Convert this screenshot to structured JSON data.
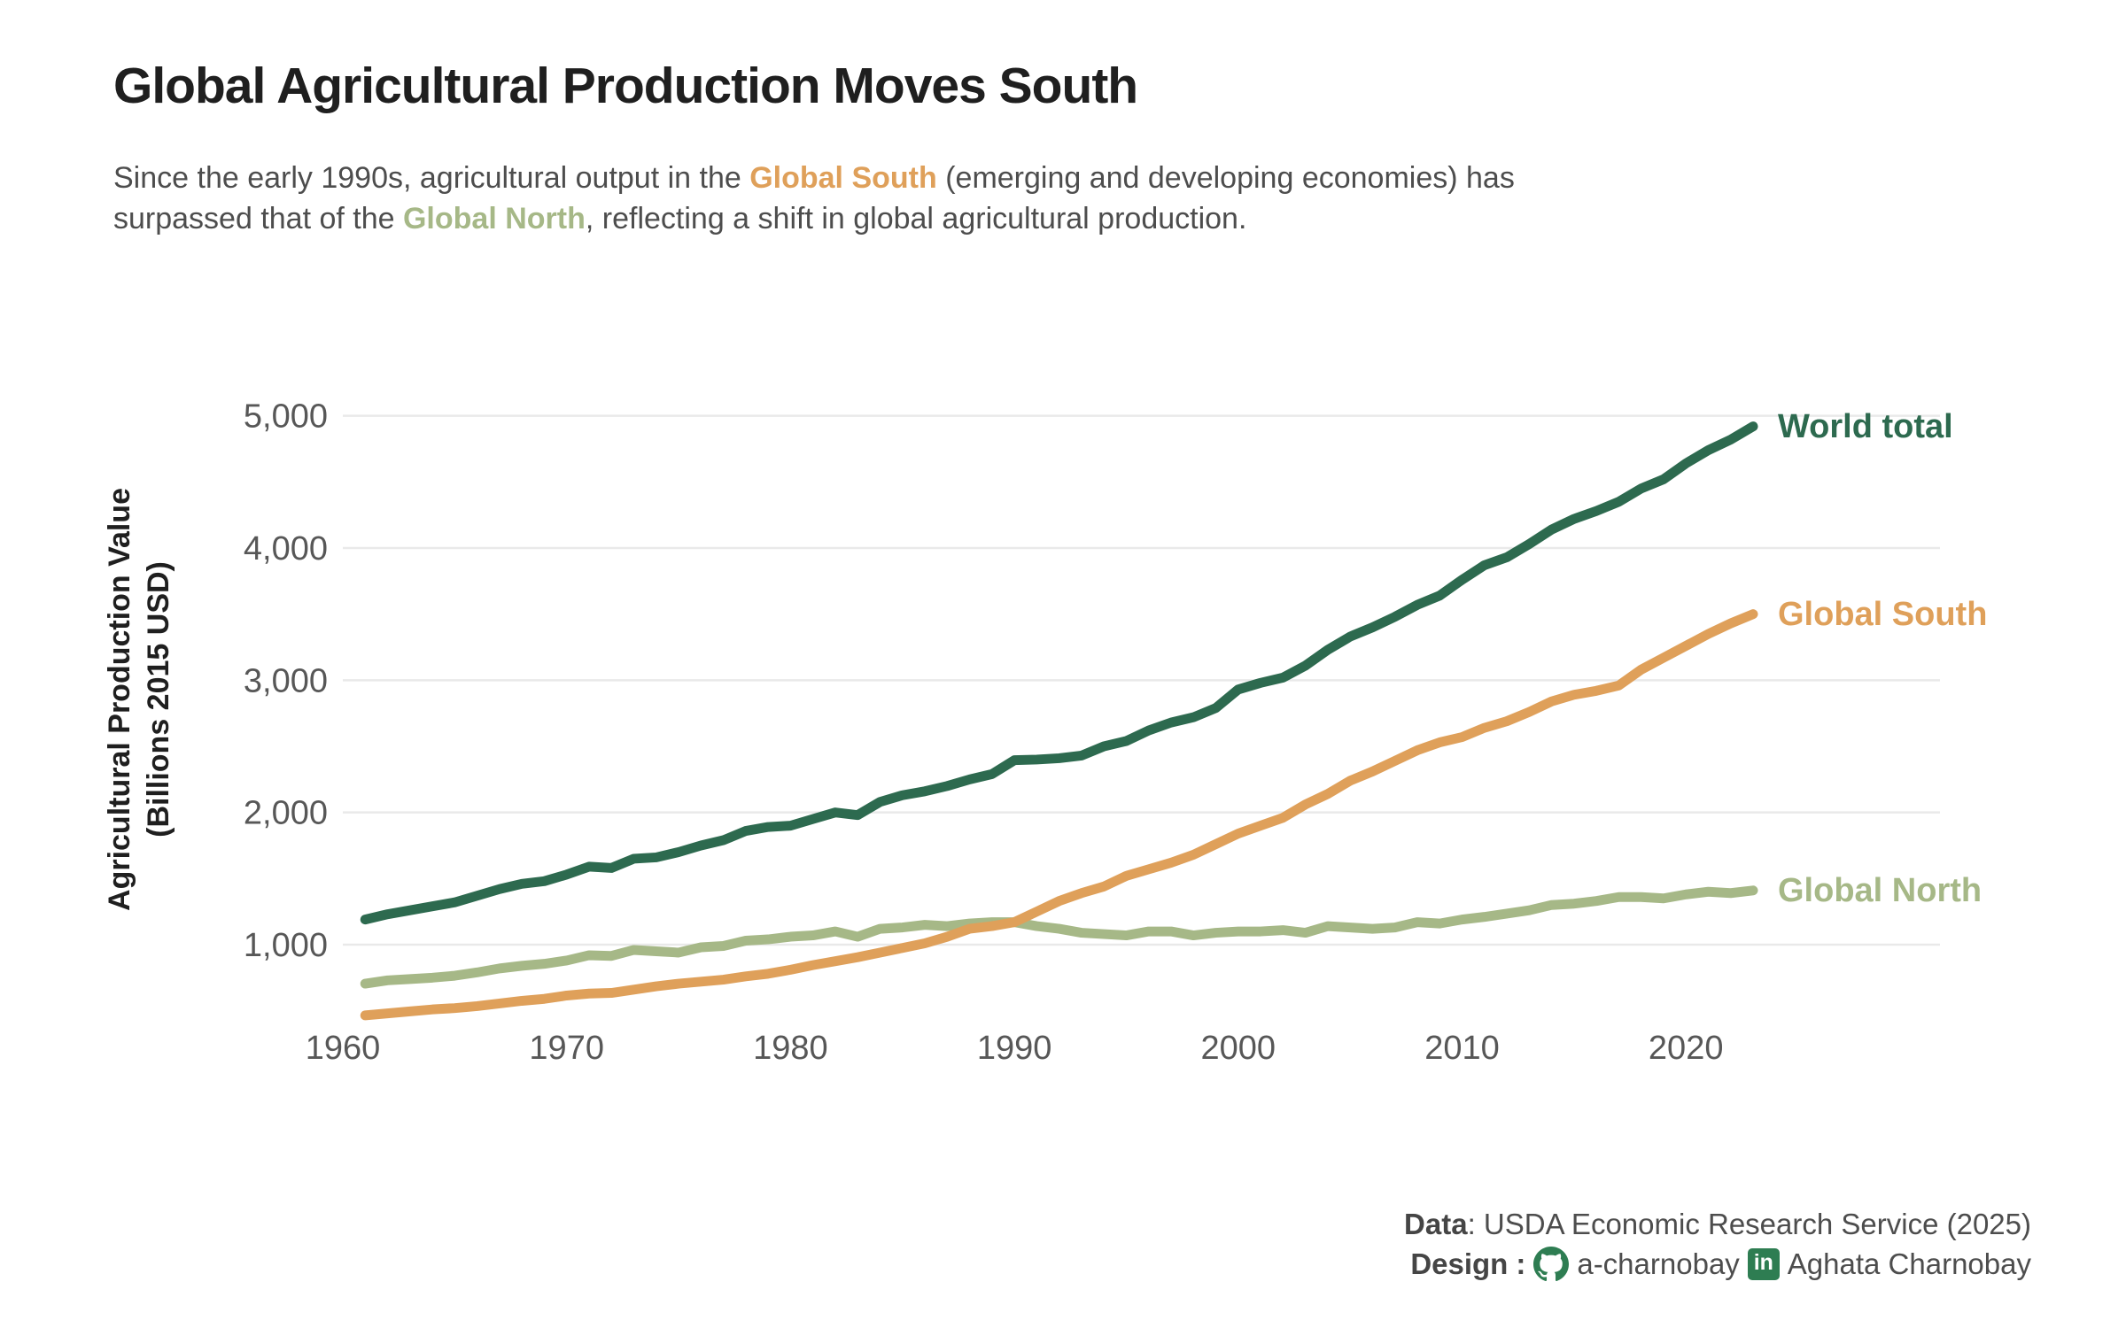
{
  "title": "Global Agricultural Production Moves South",
  "subtitle": {
    "lines": [
      [
        {
          "text": "Since the early 1990s, agricultural output in the ",
          "accent": ""
        },
        {
          "text": "Global South",
          "accent": "south_orange"
        },
        {
          "text": " (emerging and developing economies) has",
          "accent": ""
        }
      ],
      [
        {
          "text": "surpassed that of the ",
          "accent": ""
        },
        {
          "text": "Global North",
          "accent": "north_sage"
        },
        {
          "text": ", reflecting a shift in global agricultural production.",
          "accent": ""
        }
      ]
    ]
  },
  "y_axis_title_line1": "Agricultural Production Value",
  "y_axis_title_line2": "(Billions 2015 USD)",
  "colors": {
    "world_green": "#2d6a4f",
    "south_orange": "#dfa05a",
    "north_sage": "#a6b887",
    "icon_green": "#2e7d52",
    "grid": "#e9e9e9",
    "tick_text": "#575757",
    "title_text": "#1f1f1f",
    "body_text": "#4d4d4d"
  },
  "footer": {
    "data_label": "Data",
    "data_text": ": USDA Economic Research Service (2025)",
    "design_label": "Design",
    "design_sep": ":",
    "github_icon": "github-octocat",
    "github_handle": "a-charnobay",
    "linkedin_icon": "linkedin",
    "linkedin_glyph": "in",
    "linkedin_name": "Aghata Charnobay"
  },
  "chart_data": {
    "type": "line",
    "title": "Global Agricultural Production Moves South",
    "xlabel": "",
    "ylabel": "Agricultural Production Value (Billions 2015 USD)",
    "xlim": [
      1960,
      2024
    ],
    "ylim": [
      400,
      5300
    ],
    "grid": "horizontal",
    "legend_position": "end-of-line-labels",
    "x_ticks": [
      1960,
      1970,
      1980,
      1990,
      2000,
      2010,
      2020
    ],
    "y_ticks": [
      {
        "value": 1000,
        "label": "1,000"
      },
      {
        "value": 2000,
        "label": "2,000"
      },
      {
        "value": 3000,
        "label": "3,000"
      },
      {
        "value": 4000,
        "label": "4,000"
      },
      {
        "value": 5000,
        "label": "5,000"
      }
    ],
    "x": [
      1961,
      1962,
      1963,
      1964,
      1965,
      1966,
      1967,
      1968,
      1969,
      1970,
      1971,
      1972,
      1973,
      1974,
      1975,
      1976,
      1977,
      1978,
      1979,
      1980,
      1981,
      1982,
      1983,
      1984,
      1985,
      1986,
      1987,
      1988,
      1989,
      1990,
      1991,
      1992,
      1993,
      1994,
      1995,
      1996,
      1997,
      1998,
      1999,
      2000,
      2001,
      2002,
      2003,
      2004,
      2005,
      2006,
      2007,
      2008,
      2009,
      2010,
      2011,
      2012,
      2013,
      2014,
      2015,
      2016,
      2017,
      2018,
      2019,
      2020,
      2021,
      2022,
      2023
    ],
    "series": [
      {
        "name": "World total",
        "color": "#2d6a4f",
        "values": [
          1190,
          1230,
          1260,
          1290,
          1320,
          1370,
          1420,
          1460,
          1480,
          1530,
          1590,
          1580,
          1650,
          1660,
          1700,
          1750,
          1790,
          1860,
          1890,
          1900,
          1950,
          2000,
          1980,
          2080,
          2130,
          2160,
          2200,
          2250,
          2290,
          2395,
          2400,
          2410,
          2430,
          2500,
          2540,
          2620,
          2680,
          2720,
          2790,
          2930,
          2980,
          3020,
          3110,
          3230,
          3330,
          3400,
          3480,
          3570,
          3640,
          3760,
          3870,
          3930,
          4030,
          4140,
          4220,
          4280,
          4350,
          4450,
          4520,
          4640,
          4740,
          4820,
          4920
        ]
      },
      {
        "name": "Global South",
        "color": "#dfa05a",
        "values": [
          465,
          480,
          495,
          510,
          520,
          535,
          555,
          575,
          590,
          615,
          630,
          635,
          660,
          685,
          705,
          720,
          735,
          760,
          780,
          810,
          845,
          875,
          905,
          940,
          975,
          1010,
          1060,
          1120,
          1140,
          1170,
          1250,
          1330,
          1390,
          1440,
          1520,
          1570,
          1620,
          1680,
          1760,
          1840,
          1900,
          1960,
          2060,
          2140,
          2240,
          2310,
          2390,
          2470,
          2530,
          2570,
          2640,
          2690,
          2760,
          2840,
          2890,
          2920,
          2960,
          3080,
          3170,
          3260,
          3350,
          3430,
          3500
        ]
      },
      {
        "name": "Global North",
        "color": "#a6b887",
        "values": [
          705,
          730,
          740,
          750,
          765,
          790,
          820,
          840,
          855,
          880,
          920,
          915,
          960,
          950,
          940,
          980,
          990,
          1030,
          1040,
          1060,
          1070,
          1100,
          1060,
          1120,
          1130,
          1150,
          1140,
          1160,
          1170,
          1170,
          1140,
          1120,
          1090,
          1080,
          1070,
          1100,
          1100,
          1070,
          1090,
          1100,
          1100,
          1110,
          1090,
          1140,
          1130,
          1120,
          1130,
          1170,
          1160,
          1190,
          1210,
          1235,
          1260,
          1300,
          1310,
          1330,
          1360,
          1360,
          1350,
          1380,
          1400,
          1390,
          1410
        ]
      }
    ]
  }
}
